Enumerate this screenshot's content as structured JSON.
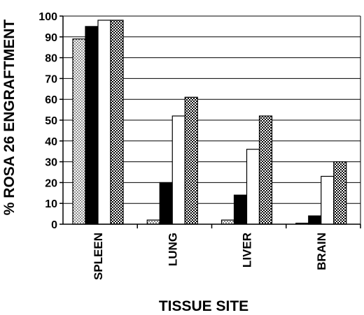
{
  "chart_data": {
    "type": "bar",
    "title": "",
    "xlabel": "TISSUE SITE",
    "ylabel": "% ROSA 26 ENGRAFTMENT",
    "ylim": [
      0,
      100
    ],
    "yticks": [
      0,
      10,
      20,
      30,
      40,
      50,
      60,
      70,
      80,
      90,
      100
    ],
    "categories": [
      "SPLEEN",
      "LUNG",
      "LIVER",
      "BRAIN"
    ],
    "grid": true,
    "legend": "none",
    "series": [
      {
        "fill": "dotted",
        "values": [
          89,
          2,
          2,
          0.5
        ]
      },
      {
        "fill": "black",
        "values": [
          95,
          20,
          14,
          4
        ]
      },
      {
        "fill": "white",
        "values": [
          98,
          52,
          36,
          23
        ]
      },
      {
        "fill": "cross-hatch",
        "values": [
          98,
          61,
          52,
          30
        ]
      }
    ]
  }
}
